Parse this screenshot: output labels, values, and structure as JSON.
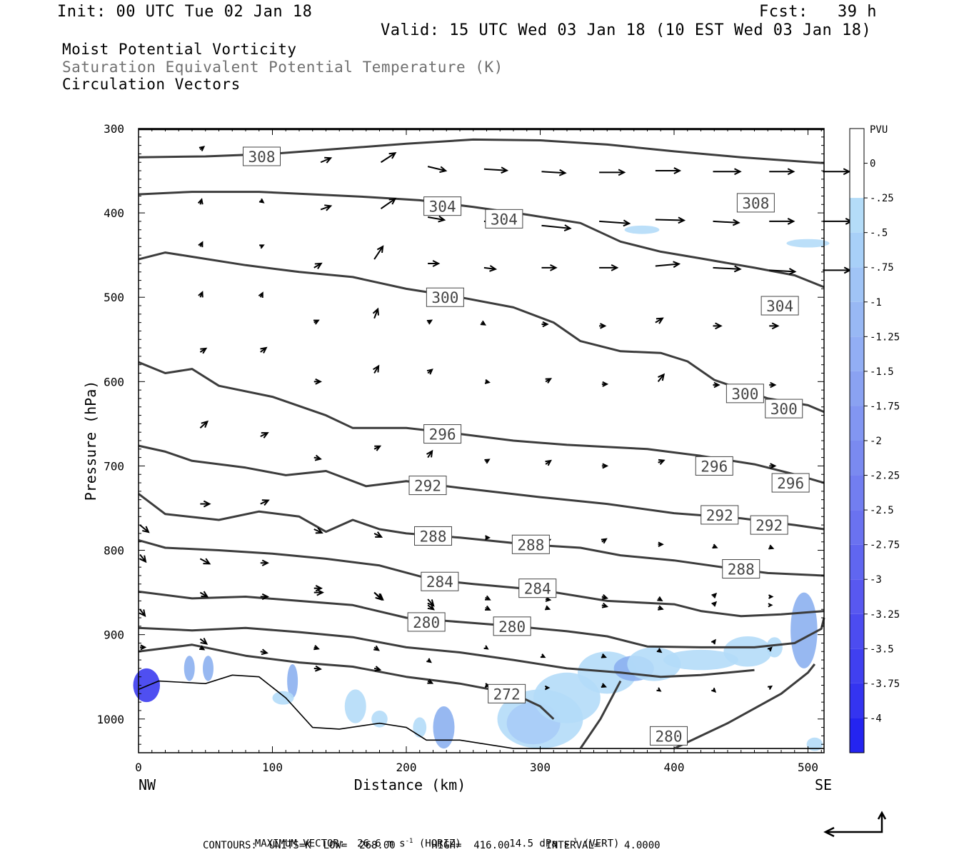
{
  "header": {
    "init": "Init: 00 UTC Tue 02 Jan 18",
    "fcst": "Fcst:   39 h",
    "valid": "Valid: 15 UTC Wed 03 Jan 18 (10 EST Wed 03 Jan 18)"
  },
  "titles": {
    "line1": "Moist Potential Vorticity",
    "line2": "Saturation Equivalent Potential Temperature (K)",
    "line3": "Circulation Vectors"
  },
  "colors": {
    "contour": "#3c3c3c",
    "shade_light": "#b4dcf8",
    "shade_mid": "#8cb0f0",
    "shade_dark": "#3c3cf0",
    "label_box": "#ffffff",
    "text_grey": "#707070"
  },
  "chart_data": {
    "type": "cross-section",
    "xlabel": "Distance (km)",
    "ylabel": "Pressure (hPa)",
    "xlim": [
      0,
      512
    ],
    "ylim": [
      1040,
      300
    ],
    "x_ticks": [
      0,
      100,
      200,
      300,
      400,
      500
    ],
    "x_tick_labels": [
      "0",
      "100",
      "200",
      "300",
      "400",
      "500"
    ],
    "y_ticks": [
      300,
      400,
      500,
      600,
      700,
      800,
      900,
      1000
    ],
    "y_tick_labels": [
      "300",
      "400",
      "500",
      "600",
      "700",
      "800",
      "900",
      "1000"
    ],
    "x_end_labels": {
      "left": "NW",
      "right": "SE"
    },
    "legend": {
      "unit": "PVU",
      "labels": [
        "0",
        "-.25",
        "-.5",
        "-.75",
        "-1",
        "-1.25",
        "-1.5",
        "-1.75",
        "-2",
        "-2.25",
        "-2.5",
        "-2.75",
        "-3",
        "-3.25",
        "-3.5",
        "-3.75",
        "-4"
      ],
      "colors": [
        "#ffffff",
        "#ffffff",
        "#b4dcf8",
        "#a8d0f8",
        "#a0c4f6",
        "#98b8f4",
        "#92aef4",
        "#8aa2f2",
        "#8296f2",
        "#7a8af0",
        "#727ef0",
        "#6a72f0",
        "#6066f0",
        "#5858f0",
        "#4c4cf0",
        "#4040f0",
        "#3434f0",
        "#2424f0"
      ]
    },
    "theta_e_contours": [
      {
        "value": 308,
        "labels": [
          "308",
          "308"
        ],
        "points": [
          [
            0,
            334
          ],
          [
            50,
            333
          ],
          [
            100,
            330
          ],
          [
            150,
            324
          ],
          [
            200,
            318
          ],
          [
            250,
            313
          ],
          [
            300,
            314
          ],
          [
            350,
            319
          ],
          [
            400,
            327
          ],
          [
            450,
            334
          ],
          [
            512,
            341
          ]
        ]
      },
      {
        "value": 304,
        "labels": [
          "304",
          "304",
          "304"
        ],
        "points": [
          [
            0,
            378
          ],
          [
            40,
            375
          ],
          [
            90,
            375
          ],
          [
            130,
            378
          ],
          [
            170,
            381
          ],
          [
            210,
            385
          ],
          [
            250,
            393
          ],
          [
            290,
            402
          ],
          [
            330,
            412
          ],
          [
            360,
            434
          ],
          [
            390,
            446
          ],
          [
            420,
            454
          ],
          [
            460,
            465
          ],
          [
            490,
            474
          ],
          [
            512,
            488
          ]
        ]
      },
      {
        "value": 300,
        "labels": [
          "300",
          "300",
          "300"
        ],
        "points": [
          [
            0,
            455
          ],
          [
            20,
            447
          ],
          [
            40,
            452
          ],
          [
            80,
            462
          ],
          [
            120,
            470
          ],
          [
            160,
            476
          ],
          [
            200,
            490
          ],
          [
            240,
            500
          ],
          [
            280,
            512
          ],
          [
            310,
            530
          ],
          [
            330,
            552
          ],
          [
            360,
            564
          ],
          [
            390,
            566
          ],
          [
            410,
            576
          ],
          [
            430,
            598
          ],
          [
            470,
            620
          ],
          [
            500,
            628
          ],
          [
            512,
            636
          ]
        ]
      },
      {
        "value": 296,
        "labels": [
          "296",
          "296",
          "296"
        ],
        "points": [
          [
            0,
            577
          ],
          [
            20,
            590
          ],
          [
            40,
            585
          ],
          [
            60,
            605
          ],
          [
            100,
            618
          ],
          [
            140,
            640
          ],
          [
            160,
            655
          ],
          [
            200,
            655
          ],
          [
            240,
            662
          ],
          [
            280,
            670
          ],
          [
            320,
            675
          ],
          [
            380,
            680
          ],
          [
            420,
            688
          ],
          [
            460,
            698
          ],
          [
            490,
            710
          ],
          [
            512,
            720
          ]
        ]
      },
      {
        "value": 292,
        "labels": [
          "292",
          "292",
          "292"
        ],
        "points": [
          [
            0,
            676
          ],
          [
            20,
            683
          ],
          [
            40,
            694
          ],
          [
            80,
            702
          ],
          [
            110,
            711
          ],
          [
            140,
            706
          ],
          [
            170,
            724
          ],
          [
            200,
            718
          ],
          [
            240,
            726
          ],
          [
            300,
            737
          ],
          [
            350,
            745
          ],
          [
            400,
            756
          ],
          [
            450,
            762
          ],
          [
            490,
            770
          ],
          [
            512,
            775
          ]
        ]
      },
      {
        "value": 288,
        "labels": [
          "288",
          "288",
          "288"
        ],
        "points": [
          [
            0,
            733
          ],
          [
            20,
            757
          ],
          [
            60,
            764
          ],
          [
            90,
            754
          ],
          [
            120,
            760
          ],
          [
            140,
            778
          ],
          [
            160,
            764
          ],
          [
            180,
            775
          ],
          [
            200,
            780
          ],
          [
            240,
            785
          ],
          [
            290,
            793
          ],
          [
            330,
            797
          ],
          [
            360,
            806
          ],
          [
            400,
            812
          ],
          [
            440,
            821
          ],
          [
            470,
            827
          ],
          [
            512,
            830
          ]
        ]
      },
      {
        "value": 284,
        "labels": [
          "284",
          "284"
        ],
        "points": [
          [
            0,
            788
          ],
          [
            20,
            797
          ],
          [
            60,
            800
          ],
          [
            100,
            804
          ],
          [
            140,
            810
          ],
          [
            180,
            818
          ],
          [
            220,
            835
          ],
          [
            250,
            840
          ],
          [
            300,
            847
          ],
          [
            350,
            860
          ],
          [
            400,
            864
          ],
          [
            420,
            872
          ],
          [
            450,
            878
          ],
          [
            480,
            876
          ],
          [
            512,
            872
          ]
        ]
      },
      {
        "value": 280,
        "labels": [
          "280",
          "280",
          "280"
        ],
        "points": [
          [
            0,
            849
          ],
          [
            40,
            857
          ],
          [
            80,
            855
          ],
          [
            120,
            860
          ],
          [
            160,
            865
          ],
          [
            200,
            880
          ],
          [
            240,
            885
          ],
          [
            280,
            890
          ],
          [
            320,
            896
          ],
          [
            350,
            902
          ],
          [
            380,
            914
          ],
          [
            420,
            915
          ],
          [
            460,
            915
          ],
          [
            490,
            910
          ],
          [
            510,
            893
          ],
          [
            512,
            880
          ]
        ]
      },
      {
        "value": 276,
        "labels": [],
        "points": [
          [
            0,
            892
          ],
          [
            40,
            895
          ],
          [
            80,
            892
          ],
          [
            120,
            897
          ],
          [
            160,
            903
          ],
          [
            200,
            915
          ],
          [
            240,
            921
          ],
          [
            280,
            930
          ],
          [
            320,
            940
          ],
          [
            360,
            945
          ],
          [
            390,
            950
          ],
          [
            420,
            948
          ],
          [
            460,
            942
          ]
        ]
      },
      {
        "value": 272,
        "labels": [
          "272"
        ],
        "points": [
          [
            0,
            920
          ],
          [
            40,
            912
          ],
          [
            80,
            925
          ],
          [
            120,
            933
          ],
          [
            160,
            938
          ],
          [
            200,
            950
          ],
          [
            240,
            958
          ],
          [
            280,
            970
          ],
          [
            300,
            985
          ],
          [
            310,
            1000
          ]
        ]
      }
    ],
    "label_positions_hint": "boxed labels placed along contours",
    "max_vector": {
      "horiz": "26.6",
      "horiz_unit": "m s",
      "vert": "14.5",
      "vert_unit": "dPa s"
    },
    "contour_info": {
      "units": "K",
      "low": "268.00",
      "high": "416.00",
      "interval": "4.0000"
    }
  },
  "footer": {
    "line1_a": "MAXIMUM VECTOR:  26.6 m s",
    "line1_b": " (HORIZ)        14.5 dPa s",
    "line1_c": " (VERT)",
    "exp": "-1",
    "line2": "CONTOURS:  UNITS=K  LOW=  268.00      HIGH=  416.00      INTERVAL=    4.0000"
  }
}
